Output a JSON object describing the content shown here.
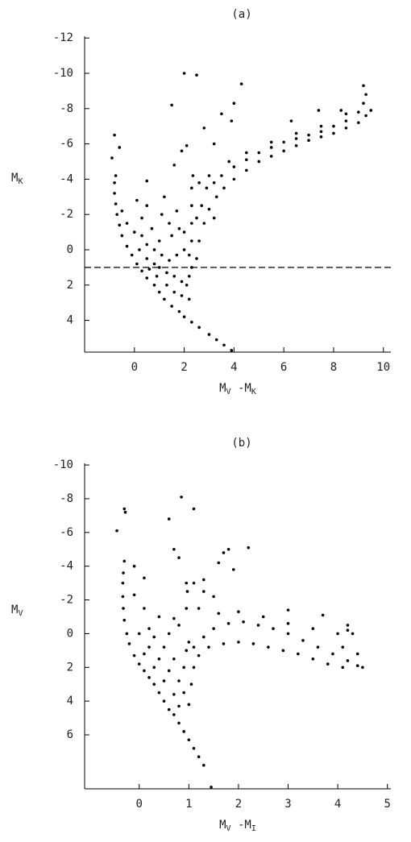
{
  "chart_data": [
    {
      "type": "scatter",
      "title": "(a)",
      "xlabel": [
        "M",
        "V",
        " -M",
        "K"
      ],
      "ylabel": [
        "M",
        "K"
      ],
      "xlim": [
        -2,
        10.3
      ],
      "ylim": [
        -12.1,
        5.8
      ],
      "invert_y": true,
      "xticks": [
        0,
        2,
        4,
        6,
        8,
        10
      ],
      "yticks": [
        -12,
        -10,
        -8,
        -6,
        -4,
        -2,
        0,
        2,
        4
      ],
      "hline": 1,
      "color": "#000000",
      "x": [
        1.5,
        1.8,
        2.0,
        2.3,
        2.6,
        3.0,
        3.3,
        3.6,
        3.9,
        1.2,
        1.0,
        0.8,
        0.5,
        0.3,
        0.1,
        -0.1,
        -0.3,
        -0.5,
        -0.6,
        -0.7,
        -0.75,
        -0.8,
        -0.8,
        -0.75,
        0.2,
        0.5,
        0.8,
        1.0,
        1.3,
        1.6,
        1.9,
        2.1,
        2.2,
        2.3,
        2.2,
        2.0,
        1.7,
        1.4,
        1.1,
        0.8,
        0.5,
        0.3,
        0.0,
        -0.3,
        -0.5,
        1.0,
        1.5,
        1.8,
        0.7,
        0.3,
        1.3,
        1.6,
        1.9,
        2.2,
        0.9,
        0.6,
        1.4,
        2.0,
        1.1,
        0.5,
        1.7,
        2.3,
        2.3,
        2.3,
        2.3,
        2.35,
        2.5,
        2.6,
        2.8,
        3.0,
        3.3,
        3.6,
        4.0,
        4.5,
        5.0,
        5.5,
        6.0,
        6.5,
        7.0,
        7.5,
        8.0,
        8.5,
        9.0,
        9.3,
        9.5,
        2.6,
        2.9,
        3.2,
        3.5,
        4.0,
        4.5,
        5.0,
        5.5,
        6.0,
        6.5,
        7.0,
        7.5,
        8.0,
        8.5,
        9.0,
        9.2,
        9.3,
        9.2,
        3.0,
        3.8,
        4.5,
        5.5,
        6.5,
        7.5,
        8.5,
        2.7,
        3.2,
        2.5,
        2.0,
        2.5,
        1.5,
        4.3,
        3.5,
        3.9,
        2.8,
        3.2,
        4.0,
        6.3,
        7.4,
        8.3,
        -0.8,
        -0.9,
        0.5,
        1.6,
        1.9,
        2.1,
        1.2,
        0.1,
        -0.6
      ],
      "values": [
        3.2,
        3.5,
        3.8,
        4.1,
        4.4,
        4.8,
        5.1,
        5.4,
        5.7,
        2.8,
        2.4,
        2.0,
        1.6,
        1.2,
        0.8,
        0.3,
        -0.2,
        -0.8,
        -1.4,
        -2.0,
        -2.6,
        -3.2,
        -3.8,
        -4.2,
        0,
        0.5,
        0.8,
        1.0,
        1.3,
        1.5,
        1.8,
        2.0,
        1.5,
        1.0,
        0.3,
        0,
        0.3,
        0.6,
        0.3,
        0,
        -0.3,
        -0.8,
        -1.0,
        -1.5,
        -2.2,
        -0.5,
        -0.8,
        -1.2,
        -1.2,
        -1.8,
        2.0,
        2.4,
        2.6,
        2.8,
        1.5,
        1.1,
        -1.5,
        -1.0,
        -2.0,
        -2.5,
        -2.2,
        -0.5,
        -1.5,
        -2.5,
        -3.5,
        -4.2,
        0.5,
        -0.5,
        -1.5,
        -2.3,
        -3.0,
        -3.5,
        -4.0,
        -4.5,
        -5.0,
        -5.3,
        -5.6,
        -5.9,
        -6.2,
        -6.4,
        -6.6,
        -6.9,
        -7.2,
        -7.6,
        -7.9,
        -3.8,
        -3.5,
        -3.8,
        -4.2,
        -4.7,
        -5.1,
        -5.5,
        -5.8,
        -6.1,
        -6.3,
        -6.5,
        -6.7,
        -7.0,
        -7.3,
        -7.8,
        -8.3,
        -8.8,
        -9.3,
        -4.2,
        -5.0,
        -5.5,
        -6.1,
        -6.6,
        -7.0,
        -7.7,
        -2.5,
        -1.8,
        -1.8,
        -10.0,
        -9.9,
        -8.2,
        -9.4,
        -7.7,
        -7.3,
        -6.9,
        -6.0,
        -8.3,
        -7.3,
        -7.9,
        -7.9,
        -6.5,
        -5.2,
        -3.9,
        -4.8,
        -5.6,
        -5.9,
        -3.0,
        -2.8,
        -5.8
      ]
    },
    {
      "type": "scatter",
      "title": "(b)",
      "xlabel": [
        "M",
        "V",
        " -M",
        "I"
      ],
      "ylabel": [
        "M",
        "V"
      ],
      "xlim": [
        -1.1,
        5.07
      ],
      "ylim": [
        -10.1,
        9.2
      ],
      "invert_y": true,
      "xticks": [
        0,
        1,
        2,
        3,
        4,
        5
      ],
      "yticks": [
        -10,
        -8,
        -6,
        -4,
        -2,
        0,
        2,
        4,
        6
      ],
      "color": "#000000",
      "x": [
        0.6,
        0.7,
        0.8,
        0.9,
        1.0,
        1.1,
        1.2,
        1.3,
        1.45,
        0.5,
        0.4,
        0.3,
        0.2,
        0.1,
        0,
        -0.1,
        -0.2,
        -0.25,
        -0.3,
        -0.32,
        -0.33,
        -0.33,
        -0.32,
        -0.3,
        0,
        0.2,
        0.4,
        0.6,
        0.8,
        0.9,
        1.0,
        0.8,
        0.7,
        0.5,
        0.3,
        0.1,
        0.5,
        0.7,
        0.9,
        0.3,
        0.6,
        0.8,
        0.4,
        0.1,
        -0.1,
        0.95,
        0.95,
        0.97,
        0.95,
        0.7,
        0.2,
        1.0,
        1.1,
        1.2,
        1.1,
        1.05,
        1.3,
        1.5,
        1.8,
        2.1,
        2.4,
        2.7,
        3.0,
        3.3,
        3.6,
        3.9,
        4.2,
        4.4,
        4.5,
        1.4,
        1.7,
        2.0,
        2.3,
        2.6,
        2.9,
        3.2,
        3.5,
        3.8,
        4.1,
        1.6,
        2.0,
        2.5,
        3.0,
        3.5,
        4.0,
        4.2,
        4.3,
        4.1,
        4.4,
        1.2,
        1.3,
        1.5,
        1.1,
        1.3,
        0.85,
        1.1,
        0.6,
        -0.3,
        -0.28,
        -0.45,
        0.7,
        0.8,
        1.8,
        1.7,
        2.2,
        1.6,
        1.9,
        0.1,
        -0.1,
        3.0,
        3.7,
        4.2
      ],
      "values": [
        4.5,
        4.8,
        5.3,
        5.8,
        6.3,
        6.8,
        7.3,
        7.8,
        9.1,
        4.0,
        3.5,
        3.0,
        2.6,
        2.2,
        1.8,
        1.3,
        0.6,
        0,
        -0.8,
        -1.5,
        -2.2,
        -3,
        -3.6,
        -4.3,
        0,
        0.8,
        1.5,
        2.2,
        2.8,
        3.5,
        4.2,
        4.3,
        3.6,
        2.8,
        2.0,
        1.2,
        0.8,
        1.5,
        2.0,
        0.2,
        0,
        -0.5,
        -1.0,
        -1.5,
        -2.3,
        1.0,
        -1.5,
        -2.5,
        -3.0,
        -0.9,
        -0.3,
        0.5,
        0.8,
        1.3,
        2.0,
        3.0,
        0.2,
        -0.3,
        -0.6,
        -0.7,
        -0.5,
        -0.3,
        0,
        0.4,
        0.8,
        1.2,
        1.6,
        1.9,
        2.0,
        0.8,
        0.6,
        0.5,
        0.6,
        0.8,
        1.0,
        1.2,
        1.5,
        1.8,
        2.0,
        -1.2,
        -1.3,
        -1.0,
        -0.6,
        -0.3,
        0,
        -0.2,
        0,
        0.8,
        1.2,
        -1.5,
        -2.5,
        -2.2,
        -3.0,
        -3.2,
        -8.1,
        -7.4,
        -6.8,
        -7.4,
        -7.2,
        -6.1,
        -5.0,
        -4.5,
        -5.0,
        -4.8,
        -5.1,
        -4.2,
        -3.8,
        -3.3,
        -4.0,
        -1.4,
        -1.1,
        -0.5
      ]
    }
  ]
}
